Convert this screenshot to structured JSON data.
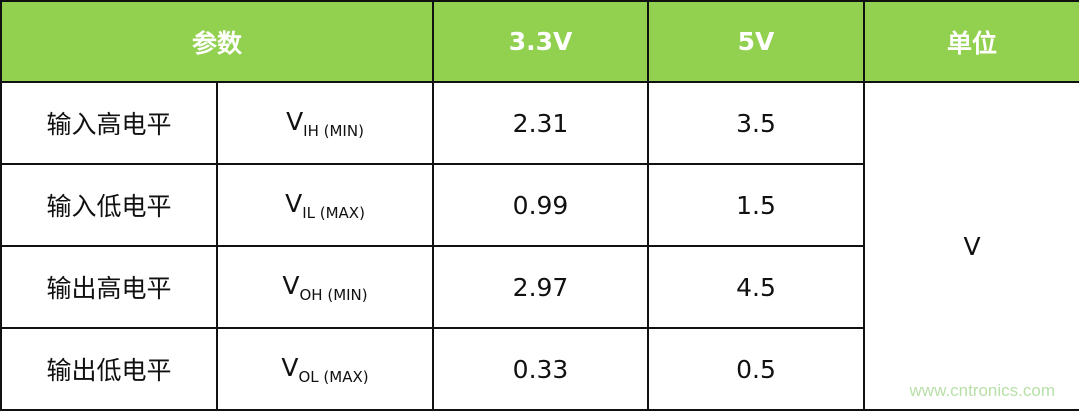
{
  "header": {
    "param": "参数",
    "v33": "3.3V",
    "v5": "5V",
    "unit": "单位"
  },
  "rows": [
    {
      "name": "输入高电平",
      "sym": "V",
      "sub": "IH (MIN)",
      "v33": "2.31",
      "v5": "3.5"
    },
    {
      "name": "输入低电平",
      "sym": "V",
      "sub": "IL (MAX)",
      "v33": "0.99",
      "v5": "1.5"
    },
    {
      "name": "输出高电平",
      "sym": "V",
      "sub": "OH (MIN)",
      "v33": "2.97",
      "v5": "4.5"
    },
    {
      "name": "输出低电平",
      "sym": "V",
      "sub": "OL (MAX)",
      "v33": "0.33",
      "v5": "0.5"
    }
  ],
  "unit_value": "V",
  "watermark": "www.cntronics.com",
  "colors": {
    "header_bg": "#92d050",
    "header_text": "#ffffff"
  }
}
